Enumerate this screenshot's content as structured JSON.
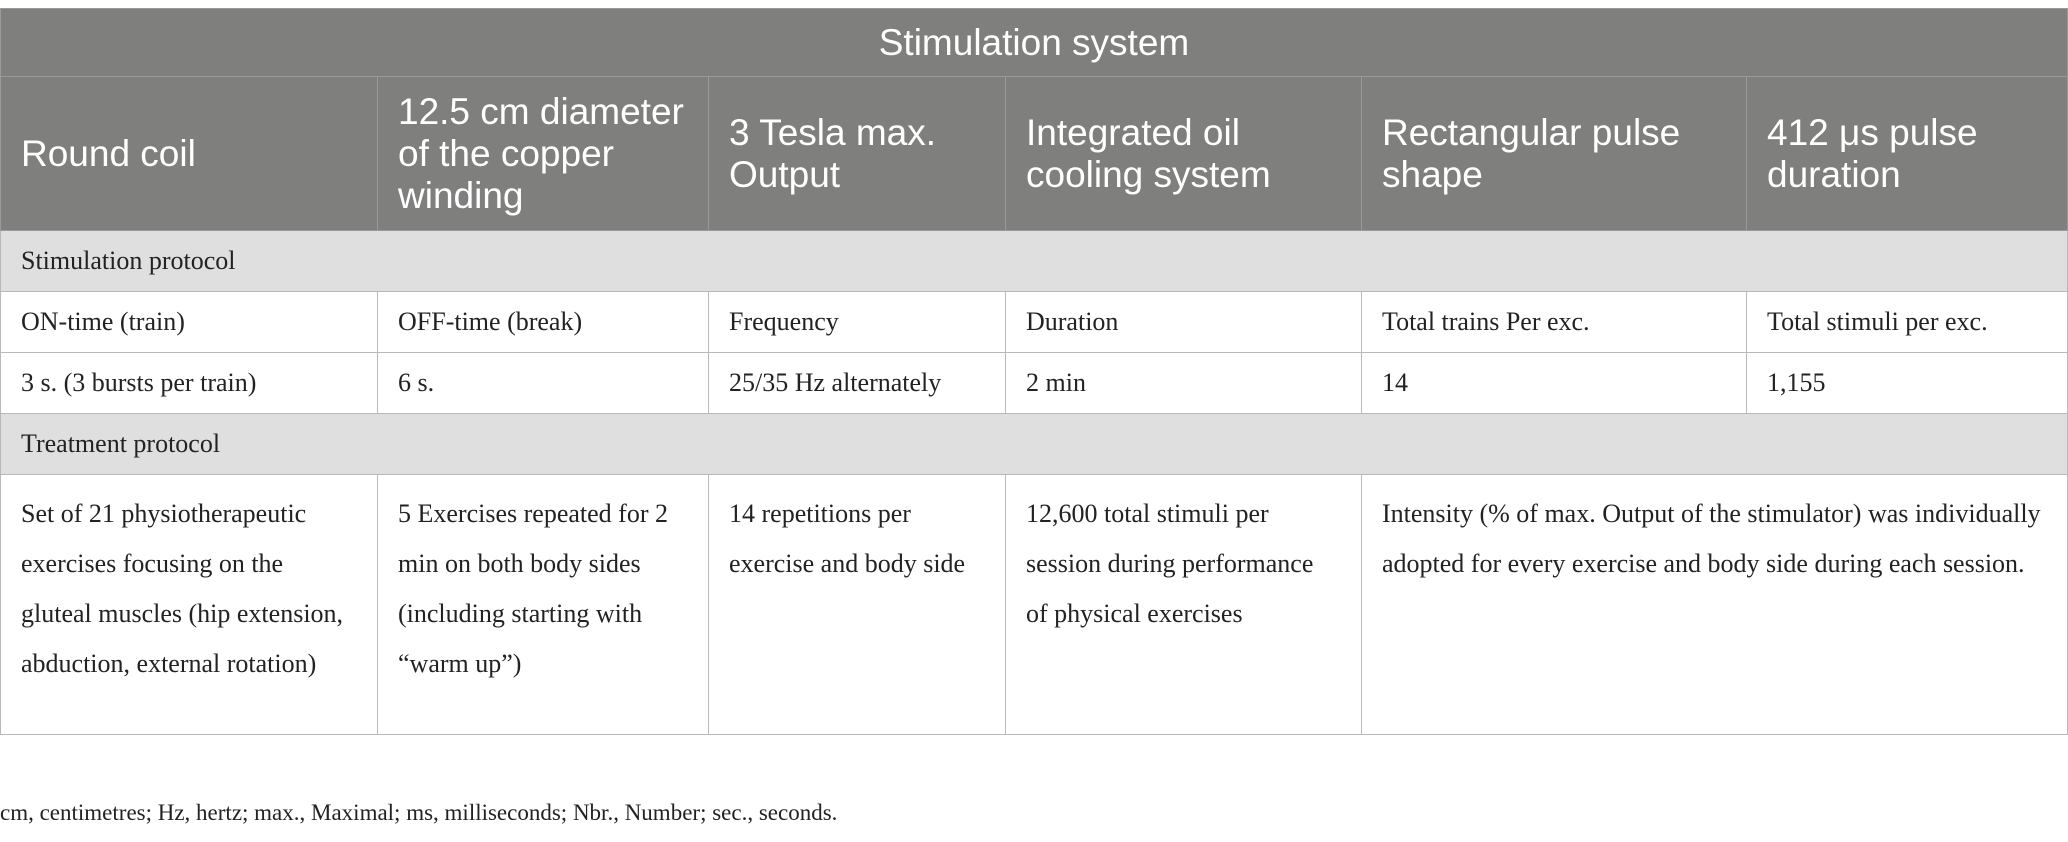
{
  "table": {
    "title": "Stimulation system",
    "system_specs": [
      "Round coil",
      "12.5 cm diameter of the copper winding",
      "3 Tesla max. Output",
      "Integrated oil cooling system",
      "Rectangular pulse shape",
      "412 μs pulse duration"
    ],
    "stimulation_protocol": {
      "heading": "Stimulation protocol",
      "headers": [
        "ON-time (train)",
        "OFF-time (break)",
        "Frequency",
        "Duration",
        "Total trains Per exc.",
        "Total stimuli per exc."
      ],
      "values": [
        "3 s. (3 bursts per train)",
        "6 s.",
        "25/35 Hz alternately",
        "2 min",
        "14",
        "1,155"
      ]
    },
    "treatment_protocol": {
      "heading": "Treatment protocol",
      "cells": [
        "Set of 21 physiotherapeutic exercises focusing on the gluteal muscles (hip extension, abduction, external rotation)",
        "5 Exercises repeated for 2 min on both body sides (including starting with “warm up”)",
        "14 repetitions per exercise and body side",
        "12,600 total stimuli per session during performance of physical exercises",
        "Intensity (% of max. Output of the stimulator) was individually adopted for every exercise and body side during each session."
      ]
    }
  },
  "footnote": "cm, centimetres; Hz, hertz; max., Maximal; ms, milliseconds; Nbr., Number; sec., seconds."
}
